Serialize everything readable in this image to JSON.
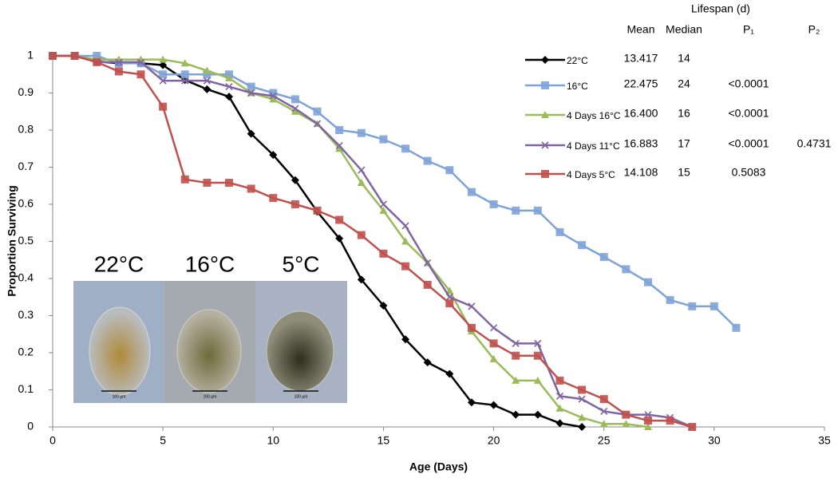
{
  "chart_data": {
    "type": "line",
    "y_label": "Proportion Surviving",
    "x_label": "Age (Days)",
    "xlim": [
      0,
      35
    ],
    "xticks": [
      0,
      5,
      10,
      15,
      20,
      25,
      30,
      35
    ],
    "ylim": [
      0,
      1
    ],
    "yticks": [
      0,
      0.1,
      0.2,
      0.3,
      0.4,
      0.5,
      0.6,
      0.7,
      0.8,
      0.9,
      1
    ],
    "grid": false,
    "series": [
      {
        "name": "22°C",
        "color": "#000000",
        "marker": "diamond",
        "x": [
          0,
          1,
          2,
          3,
          4,
          5,
          6,
          7,
          8,
          9,
          10,
          11,
          12,
          13,
          14,
          15,
          16,
          17,
          18,
          19,
          20,
          21,
          22,
          23,
          24
        ],
        "values": [
          1,
          1,
          0.985,
          0.98,
          0.98,
          0.975,
          0.935,
          0.91,
          0.89,
          0.79,
          0.733,
          0.665,
          0.58,
          0.508,
          0.397,
          0.327,
          0.236,
          0.174,
          0.143,
          0.066,
          0.059,
          0.033,
          0.033,
          0.01,
          0
        ]
      },
      {
        "name": "16°C",
        "color": "#7ea3d8",
        "marker": "square",
        "x": [
          0,
          1,
          2,
          3,
          4,
          5,
          6,
          7,
          8,
          9,
          10,
          11,
          12,
          13,
          14,
          15,
          16,
          17,
          18,
          19,
          20,
          21,
          22,
          23,
          24,
          25,
          26,
          27,
          28,
          29,
          30,
          31
        ],
        "values": [
          1,
          1,
          1,
          0.98,
          0.98,
          0.95,
          0.95,
          0.95,
          0.95,
          0.917,
          0.9,
          0.883,
          0.85,
          0.8,
          0.792,
          0.775,
          0.75,
          0.717,
          0.692,
          0.633,
          0.6,
          0.583,
          0.583,
          0.525,
          0.49,
          0.458,
          0.425,
          0.39,
          0.342,
          0.325,
          0.325,
          0.267
        ]
      },
      {
        "name": "4 Days 16°C",
        "color": "#9bbb59",
        "marker": "triangle",
        "x": [
          0,
          1,
          2,
          3,
          4,
          5,
          6,
          7,
          8,
          9,
          10,
          11,
          12,
          13,
          14,
          15,
          16,
          17,
          18,
          19,
          20,
          21,
          22,
          23,
          24,
          25,
          26,
          27
        ],
        "values": [
          1,
          1,
          0.99,
          0.99,
          0.99,
          0.99,
          0.98,
          0.96,
          0.94,
          0.9,
          0.883,
          0.85,
          0.817,
          0.75,
          0.658,
          0.583,
          0.5,
          0.442,
          0.367,
          0.258,
          0.183,
          0.125,
          0.125,
          0.05,
          0.025,
          0.008,
          0.008,
          0
        ]
      },
      {
        "name": "4 Days 11°C",
        "color": "#8064a2",
        "marker": "x",
        "x": [
          0,
          1,
          2,
          3,
          4,
          5,
          6,
          7,
          8,
          9,
          10,
          11,
          12,
          13,
          14,
          15,
          16,
          17,
          18,
          19,
          20,
          21,
          22,
          23,
          24,
          25,
          26,
          27,
          28,
          29
        ],
        "values": [
          1,
          1,
          0.983,
          0.983,
          0.983,
          0.933,
          0.933,
          0.933,
          0.917,
          0.9,
          0.892,
          0.858,
          0.817,
          0.758,
          0.692,
          0.6,
          0.542,
          0.442,
          0.35,
          0.325,
          0.267,
          0.225,
          0.225,
          0.083,
          0.075,
          0.042,
          0.033,
          0.033,
          0.025,
          0
        ]
      },
      {
        "name": "4 Days 5°C",
        "color": "#c0504d",
        "marker": "square",
        "x": [
          0,
          1,
          2,
          3,
          4,
          5,
          6,
          7,
          8,
          9,
          10,
          11,
          12,
          13,
          14,
          15,
          16,
          17,
          18,
          19,
          20,
          21,
          22,
          23,
          24,
          25,
          26,
          27,
          28,
          29
        ],
        "values": [
          1,
          1,
          0.983,
          0.958,
          0.95,
          0.863,
          0.667,
          0.658,
          0.658,
          0.642,
          0.617,
          0.6,
          0.583,
          0.558,
          0.517,
          0.467,
          0.433,
          0.383,
          0.333,
          0.267,
          0.225,
          0.192,
          0.192,
          0.125,
          0.1,
          0.075,
          0.033,
          0.017,
          0.017,
          0
        ]
      }
    ],
    "table": {
      "title": "Lifespan (d)",
      "columns": [
        "Mean",
        "Median",
        "P₁",
        "P₂"
      ],
      "rows": [
        [
          "13.417",
          "14"
        ],
        [
          "22.475",
          "24",
          "<0.0001"
        ],
        [
          "16.400",
          "16",
          "<0.0001"
        ],
        [
          "16.883",
          "17",
          "<0.0001",
          "0.4731"
        ],
        [
          "14.108",
          "15",
          "0.5083"
        ]
      ]
    },
    "inset": {
      "labels": [
        "22°C",
        "16°C",
        "5°C"
      ],
      "scale_bars": [
        "100 µm",
        "100 µm",
        "100 µm"
      ]
    }
  }
}
